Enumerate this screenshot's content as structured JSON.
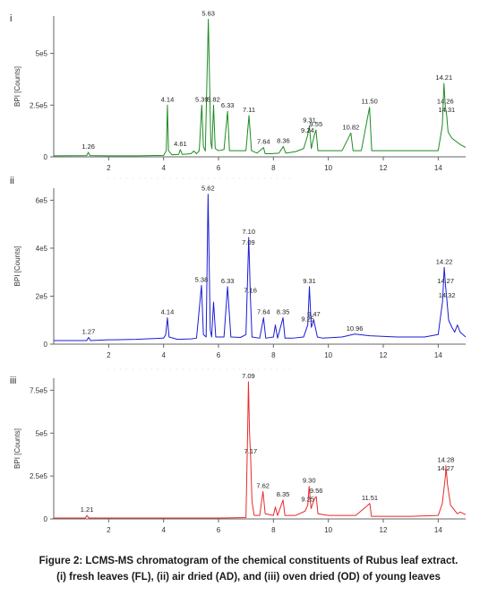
{
  "caption": {
    "line1": "Figure 2: LCMS-MS chromatogram of the chemical constituents of Rubus leaf extract.",
    "line2": "(i) fresh leaves (FL), (ii) air dried (AD), and (iii) oven dried (OD) of young leaves"
  },
  "chart_data": [
    {
      "type": "line",
      "panel_label": "i",
      "color": "#1f8b24",
      "ylabel": "BPI [Counts]",
      "xlim": [
        0,
        15
      ],
      "ylim": [
        0,
        680000
      ],
      "x_ticks": [
        "2",
        "4",
        "6",
        "8",
        "10",
        "12",
        "14"
      ],
      "y_ticks": [
        "0",
        "2.5e5",
        "5e5"
      ],
      "series": [
        {
          "x": [
            0.0,
            1.2,
            1.26,
            1.32,
            2.0,
            3.0,
            4.0,
            4.1,
            4.14,
            4.18,
            4.3,
            4.55,
            4.61,
            4.68,
            5.0,
            5.1,
            5.2,
            5.3,
            5.39,
            5.45,
            5.52,
            5.63,
            5.72,
            5.76,
            5.82,
            5.88,
            6.0,
            6.2,
            6.33,
            6.4,
            6.6,
            7.0,
            7.11,
            7.2,
            7.4,
            7.64,
            7.7,
            7.9,
            8.2,
            8.36,
            8.45,
            8.8,
            9.1,
            9.24,
            9.31,
            9.38,
            9.48,
            9.55,
            9.62,
            10.0,
            10.5,
            10.82,
            10.9,
            11.2,
            11.5,
            11.58,
            11.8,
            12.5,
            13.0,
            13.5,
            14.0,
            14.15,
            14.21,
            14.26,
            14.31,
            14.36,
            14.5,
            14.7,
            14.8,
            15.0
          ],
          "y": [
            5000,
            6000,
            22000,
            6000,
            5000,
            5000,
            7000,
            30000,
            250000,
            30000,
            10000,
            12000,
            35000,
            12000,
            15000,
            28000,
            15000,
            30000,
            250000,
            50000,
            28000,
            665000,
            70000,
            40000,
            250000,
            40000,
            30000,
            35000,
            220000,
            30000,
            30000,
            30000,
            200000,
            30000,
            18000,
            45000,
            15000,
            15000,
            18000,
            50000,
            18000,
            25000,
            40000,
            100000,
            150000,
            40000,
            100000,
            130000,
            30000,
            30000,
            30000,
            115000,
            30000,
            30000,
            240000,
            30000,
            30000,
            30000,
            30000,
            30000,
            30000,
            150000,
            355000,
            240000,
            200000,
            120000,
            90000,
            70000,
            60000,
            45000
          ]
        }
      ],
      "annotations": [
        {
          "text": "1.26",
          "x": 1.26,
          "y": 22000
        },
        {
          "text": "4.14",
          "x": 4.14,
          "y": 250000
        },
        {
          "text": "4.61",
          "x": 4.61,
          "y": 35000
        },
        {
          "text": "5.39",
          "x": 5.39,
          "y": 250000
        },
        {
          "text": "5.63",
          "x": 5.63,
          "y": 665000
        },
        {
          "text": "5.82",
          "x": 5.82,
          "y": 250000
        },
        {
          "text": "6.33",
          "x": 6.33,
          "y": 220000
        },
        {
          "text": "7.11",
          "x": 7.11,
          "y": 200000
        },
        {
          "text": "7.64",
          "x": 7.64,
          "y": 45000
        },
        {
          "text": "8.36",
          "x": 8.36,
          "y": 50000
        },
        {
          "text": "9.24",
          "x": 9.24,
          "y": 100000
        },
        {
          "text": "9.31",
          "x": 9.31,
          "y": 150000
        },
        {
          "text": "9.55",
          "x": 9.55,
          "y": 130000
        },
        {
          "text": "10.82",
          "x": 10.82,
          "y": 115000
        },
        {
          "text": "11.50",
          "x": 11.5,
          "y": 240000
        },
        {
          "text": "14.21",
          "x": 14.21,
          "y": 355000
        },
        {
          "text": "14.26",
          "x": 14.26,
          "y": 240000
        },
        {
          "text": "14.31",
          "x": 14.31,
          "y": 200000
        }
      ]
    },
    {
      "type": "line",
      "panel_label": "ii",
      "color": "#1c1cd6",
      "ylabel": "BPI [Counts]",
      "xlim": [
        0,
        15
      ],
      "ylim": [
        0,
        650000
      ],
      "x_ticks": [
        "2",
        "4",
        "6",
        "8",
        "10",
        "12",
        "14"
      ],
      "y_ticks": [
        "0",
        "2e5",
        "4e5",
        "6e5"
      ],
      "series": [
        {
          "x": [
            0.0,
            1.2,
            1.27,
            1.34,
            2.0,
            3.0,
            4.0,
            4.08,
            4.14,
            4.2,
            4.5,
            5.0,
            5.2,
            5.38,
            5.45,
            5.55,
            5.62,
            5.7,
            5.75,
            5.82,
            5.9,
            6.2,
            6.33,
            6.45,
            6.8,
            7.0,
            7.09,
            7.1,
            7.13,
            7.16,
            7.22,
            7.5,
            7.64,
            7.72,
            8.0,
            8.07,
            8.15,
            8.35,
            8.42,
            8.7,
            9.1,
            9.25,
            9.31,
            9.38,
            9.47,
            9.6,
            9.8,
            10.5,
            10.96,
            11.5,
            12.5,
            13.5,
            14.0,
            14.16,
            14.22,
            14.27,
            14.32,
            14.38,
            14.5,
            14.6,
            14.7,
            14.8,
            15.0
          ],
          "y": [
            15000,
            15000,
            28000,
            15000,
            18000,
            20000,
            25000,
            40000,
            110000,
            30000,
            20000,
            22000,
            25000,
            245000,
            40000,
            30000,
            625000,
            60000,
            30000,
            175000,
            30000,
            30000,
            240000,
            30000,
            28000,
            40000,
            400000,
            445000,
            330000,
            200000,
            30000,
            25000,
            110000,
            25000,
            30000,
            80000,
            25000,
            110000,
            25000,
            25000,
            30000,
            80000,
            240000,
            70000,
            100000,
            30000,
            25000,
            30000,
            42000,
            35000,
            30000,
            30000,
            40000,
            180000,
            320000,
            240000,
            180000,
            100000,
            70000,
            50000,
            80000,
            50000,
            30000
          ]
        }
      ],
      "annotations": [
        {
          "text": "1.27",
          "x": 1.27,
          "y": 28000
        },
        {
          "text": "4.14",
          "x": 4.14,
          "y": 110000
        },
        {
          "text": "5.38",
          "x": 5.38,
          "y": 245000
        },
        {
          "text": "5.62",
          "x": 5.62,
          "y": 625000
        },
        {
          "text": "6.33",
          "x": 6.33,
          "y": 240000
        },
        {
          "text": "7.09",
          "x": 7.09,
          "y": 400000
        },
        {
          "text": "7.10",
          "x": 7.1,
          "y": 445000
        },
        {
          "text": "7.16",
          "x": 7.16,
          "y": 200000
        },
        {
          "text": "7.64",
          "x": 7.64,
          "y": 110000
        },
        {
          "text": "8.35",
          "x": 8.35,
          "y": 110000
        },
        {
          "text": "9.25",
          "x": 9.25,
          "y": 80000
        },
        {
          "text": "9.31",
          "x": 9.31,
          "y": 240000
        },
        {
          "text": "9.47",
          "x": 9.47,
          "y": 100000
        },
        {
          "text": "10.96",
          "x": 10.96,
          "y": 42000
        },
        {
          "text": "14.22",
          "x": 14.22,
          "y": 320000
        },
        {
          "text": "14.27",
          "x": 14.27,
          "y": 240000
        },
        {
          "text": "14.32",
          "x": 14.32,
          "y": 180000
        }
      ]
    },
    {
      "type": "line",
      "panel_label": "iii",
      "color": "#e82a2a",
      "ylabel": "BPI [Counts]",
      "xlim": [
        0,
        15
      ],
      "ylim": [
        0,
        820000
      ],
      "x_ticks": [
        "2",
        "4",
        "6",
        "8",
        "10",
        "12",
        "14"
      ],
      "y_ticks": [
        "0",
        "2.5e5",
        "5e5",
        "7.5e5"
      ],
      "series": [
        {
          "x": [
            0.0,
            1.15,
            1.21,
            1.28,
            2.0,
            4.0,
            6.0,
            7.0,
            7.06,
            7.09,
            7.13,
            7.17,
            7.22,
            7.3,
            7.5,
            7.62,
            7.7,
            8.0,
            8.07,
            8.15,
            8.35,
            8.42,
            8.8,
            9.15,
            9.25,
            9.3,
            9.37,
            9.5,
            9.56,
            9.62,
            10.0,
            11.0,
            11.51,
            11.57,
            12.0,
            13.0,
            14.0,
            14.15,
            14.27,
            14.28,
            14.34,
            14.45,
            14.6,
            14.7,
            14.8,
            15.0
          ],
          "y": [
            5000,
            5000,
            20000,
            5000,
            5000,
            5000,
            5000,
            8000,
            500000,
            800000,
            500000,
            360000,
            100000,
            20000,
            20000,
            160000,
            30000,
            20000,
            70000,
            20000,
            110000,
            20000,
            20000,
            45000,
            80000,
            190000,
            60000,
            120000,
            130000,
            30000,
            20000,
            20000,
            90000,
            15000,
            15000,
            15000,
            20000,
            90000,
            260000,
            310000,
            200000,
            80000,
            50000,
            30000,
            40000,
            25000
          ]
        }
      ],
      "annotations": [
        {
          "text": "1.21",
          "x": 1.21,
          "y": 20000
        },
        {
          "text": "7.09",
          "x": 7.09,
          "y": 800000
        },
        {
          "text": "7.17",
          "x": 7.17,
          "y": 360000
        },
        {
          "text": "7.62",
          "x": 7.62,
          "y": 160000
        },
        {
          "text": "8.35",
          "x": 8.35,
          "y": 110000
        },
        {
          "text": "9.25",
          "x": 9.25,
          "y": 80000
        },
        {
          "text": "9.30",
          "x": 9.3,
          "y": 190000
        },
        {
          "text": "9.56",
          "x": 9.56,
          "y": 130000
        },
        {
          "text": "11.51",
          "x": 11.51,
          "y": 90000
        },
        {
          "text": "14.27",
          "x": 14.27,
          "y": 260000
        },
        {
          "text": "14.28",
          "x": 14.28,
          "y": 310000
        }
      ]
    }
  ]
}
